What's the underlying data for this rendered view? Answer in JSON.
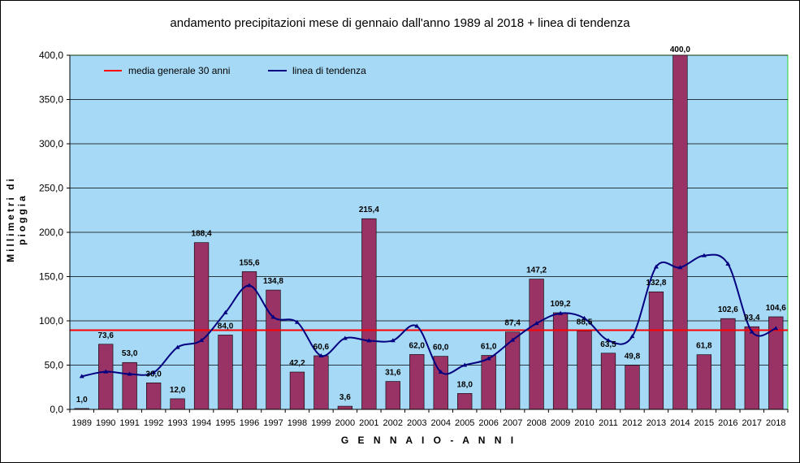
{
  "chart_data": {
    "type": "bar",
    "title": "andamento precipitazioni mese di gennaio dall'anno 1989 al 2018 + linea di tendenza",
    "xlabel": "G E N N A I O  -  A N N I",
    "ylabel": "Millimetri di pioggia",
    "ylim": [
      0,
      400
    ],
    "yticks": [
      0,
      50,
      100,
      150,
      200,
      250,
      300,
      350,
      400
    ],
    "ytick_labels": [
      "0,0",
      "50,0",
      "100,0",
      "150,0",
      "200,0",
      "250,0",
      "300,0",
      "350,0",
      "400,0"
    ],
    "grid": true,
    "legend_position": "top-left",
    "categories": [
      "1989",
      "1990",
      "1991",
      "1992",
      "1993",
      "1994",
      "1995",
      "1996",
      "1997",
      "1998",
      "1999",
      "2000",
      "2001",
      "2002",
      "2003",
      "2004",
      "2005",
      "2006",
      "2007",
      "2008",
      "2009",
      "2010",
      "2011",
      "2012",
      "2013",
      "2014",
      "2015",
      "2016",
      "2017",
      "2018"
    ],
    "series": [
      {
        "type": "bar",
        "values": [
          1.0,
          73.6,
          53.0,
          30.0,
          12.0,
          188.4,
          84.0,
          155.6,
          134.8,
          42.2,
          60.6,
          3.6,
          215.4,
          31.6,
          62.0,
          60.0,
          18.0,
          61.0,
          87.4,
          147.2,
          109.2,
          88.5,
          63.5,
          49.8,
          132.8,
          400.0,
          61.8,
          102.6,
          93.4,
          104.6
        ],
        "labels": [
          "1,0",
          "73,6",
          "53,0",
          "30,0",
          "12,0",
          "188,4",
          "84,0",
          "155,6",
          "134,8",
          "42,2",
          "60,6",
          "3,6",
          "215,4",
          "31,6",
          "62,0",
          "60,0",
          "18,0",
          "61,0",
          "87,4",
          "147,2",
          "109,2",
          "88,5",
          "63,5",
          "49,8",
          "132,8",
          "400,0",
          "61,8",
          "102,6",
          "93,4",
          "104,6"
        ],
        "color": "#993366"
      },
      {
        "name": "media generale 30 anni",
        "type": "hline",
        "value": 89.4,
        "color": "#ff0000"
      },
      {
        "name": "linea di tendenza",
        "type": "line",
        "values": [
          37.3,
          42.6,
          39.9,
          41.6,
          70.1,
          78.0,
          109.3,
          140.0,
          104.2,
          98.4,
          60.6,
          80.3,
          77.6,
          77.8,
          94.0,
          42.2,
          50.0,
          57.4,
          78.3,
          97.1,
          108.5,
          102.9,
          77.9,
          82.4,
          161.0,
          160.3,
          173.7,
          164.2,
          87.6,
          91.5
        ],
        "color": "#000080"
      }
    ],
    "colors": {
      "plot_background": "#a6d9f5",
      "bar_fill": "#993366",
      "mean_line": "#ff0000",
      "trend_line": "#000080"
    }
  }
}
